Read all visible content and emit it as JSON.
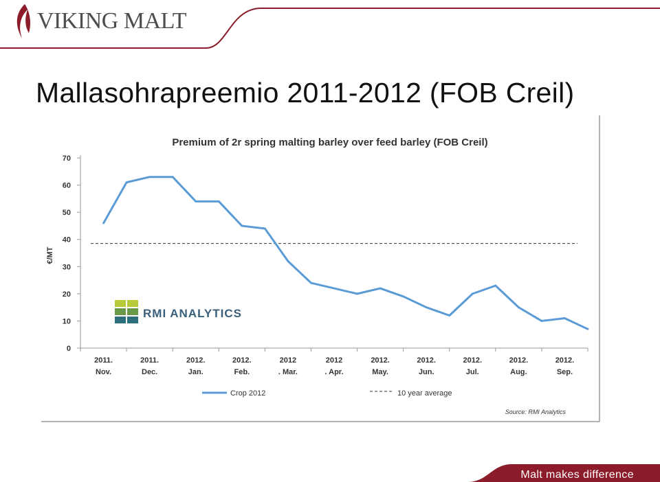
{
  "brand": {
    "logo_text": "VIKING MALT",
    "tagline": "Malt makes difference",
    "colors": {
      "maroon": "#8c1c2a",
      "line": "#5b9bd5"
    }
  },
  "slide": {
    "title": "Mallasohrapreemio 2011-2012 (FOB Creil)"
  },
  "chart_data": {
    "type": "line",
    "title": "Premium of 2r spring malting barley over feed barley (FOB Creil)",
    "ylabel": "€/MT",
    "xlabel": "",
    "ylim": [
      0,
      70
    ],
    "yticks": [
      0,
      10,
      20,
      30,
      40,
      50,
      60,
      70
    ],
    "x_categories": [
      {
        "top": "2011.",
        "bottom": "Nov."
      },
      {
        "top": "2011.",
        "bottom": "Dec."
      },
      {
        "top": "2012.",
        "bottom": "Jan."
      },
      {
        "top": "2012.",
        "bottom": "Feb."
      },
      {
        "top": "2012",
        "bottom": ". Mar."
      },
      {
        "top": "2012",
        "bottom": ". Apr."
      },
      {
        "top": "2012.",
        "bottom": "May."
      },
      {
        "top": "2012.",
        "bottom": "Jun."
      },
      {
        "top": "2012.",
        "bottom": "Jul."
      },
      {
        "top": "2012.",
        "bottom": "Aug."
      },
      {
        "top": "2012.",
        "bottom": "Sep."
      }
    ],
    "series": [
      {
        "name": "Crop 2012",
        "x": [
          0,
          0.5,
          1,
          1.5,
          2,
          2.5,
          3,
          3.5,
          4,
          4.5,
          5,
          5.5,
          6,
          6.5,
          7,
          7.5,
          8,
          8.5,
          9,
          9.5,
          10,
          10.5
        ],
        "values": [
          46,
          61,
          63,
          63,
          54,
          54,
          45,
          44,
          32,
          24,
          22,
          20,
          22,
          19,
          15,
          12,
          20,
          23,
          15,
          10,
          11,
          7
        ]
      }
    ],
    "reference_lines": [
      {
        "name": "10 year average",
        "value": 38.5
      }
    ],
    "legend": {
      "position": "bottom",
      "items": [
        "Crop 2012",
        "10 year average"
      ]
    },
    "logo_text": "RMI ANALYTICS",
    "source": "Source: RMI Analytics",
    "grid": false
  }
}
